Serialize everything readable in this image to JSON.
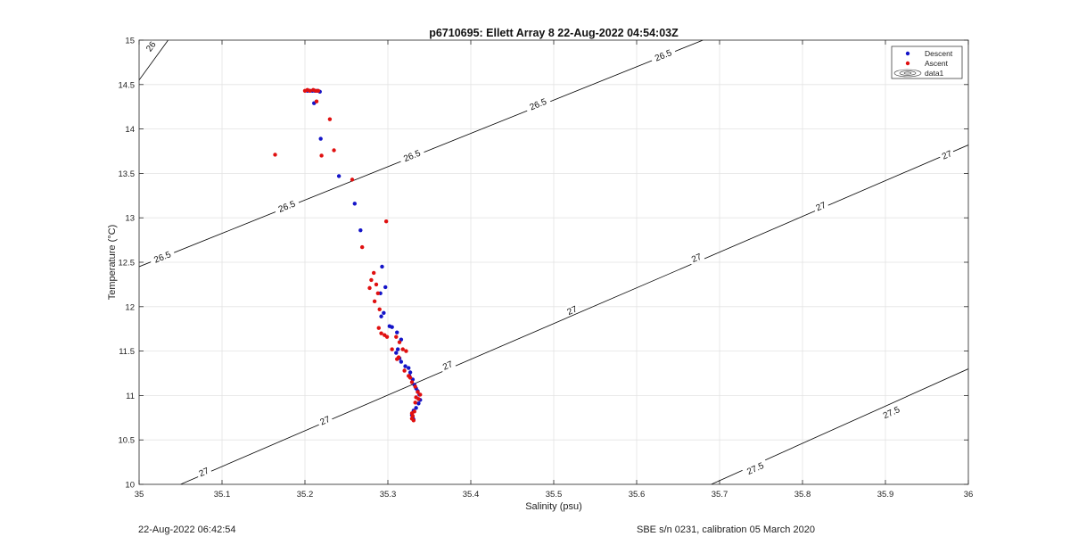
{
  "chart_data": {
    "type": "scatter",
    "title": "p6710695: Ellett Array 8 22-Aug-2022 04:54:03Z",
    "xlabel": "Salinity (psu)",
    "ylabel": "Temperature (°C)",
    "xlim": [
      35,
      36
    ],
    "ylim": [
      10,
      15
    ],
    "xticks": [
      35,
      35.1,
      35.2,
      35.3,
      35.4,
      35.5,
      35.6,
      35.7,
      35.8,
      35.9,
      36
    ],
    "xtick_labels": [
      "35",
      "35.1",
      "35.2",
      "35.3",
      "35.4",
      "35.5",
      "35.6",
      "35.7",
      "35.8",
      "35.9",
      "36"
    ],
    "yticks": [
      10,
      10.5,
      11,
      11.5,
      12,
      12.5,
      13,
      13.5,
      14,
      14.5,
      15
    ],
    "ytick_labels": [
      "10",
      "10.5",
      "11",
      "11.5",
      "12",
      "12.5",
      "13",
      "13.5",
      "14",
      "14.5",
      "15"
    ],
    "grid": true,
    "legend": {
      "position": "top-right",
      "entries": [
        "Descent",
        "Ascent",
        "data1"
      ]
    },
    "colors": {
      "descent": "#1414c8",
      "ascent": "#e01010",
      "contour": "#000000",
      "grid": "#e3e3e3"
    },
    "series": [
      {
        "name": "Descent",
        "color": "#1414c8",
        "points": [
          [
            35.203,
            14.43
          ],
          [
            35.206,
            14.43
          ],
          [
            35.209,
            14.43
          ],
          [
            35.212,
            14.43
          ],
          [
            35.215,
            14.43
          ],
          [
            35.218,
            14.42
          ],
          [
            35.211,
            14.29
          ],
          [
            35.219,
            13.89
          ],
          [
            35.241,
            13.47
          ],
          [
            35.26,
            13.16
          ],
          [
            35.267,
            12.86
          ],
          [
            35.293,
            12.45
          ],
          [
            35.297,
            12.22
          ],
          [
            35.291,
            12.15
          ],
          [
            35.295,
            11.93
          ],
          [
            35.292,
            11.89
          ],
          [
            35.302,
            11.78
          ],
          [
            35.305,
            11.77
          ],
          [
            35.311,
            11.71
          ],
          [
            35.316,
            11.63
          ],
          [
            35.312,
            11.52
          ],
          [
            35.31,
            11.48
          ],
          [
            35.314,
            11.42
          ],
          [
            35.316,
            11.38
          ],
          [
            35.321,
            11.33
          ],
          [
            35.325,
            11.31
          ],
          [
            35.327,
            11.26
          ],
          [
            35.326,
            11.22
          ],
          [
            35.33,
            11.18
          ],
          [
            35.332,
            11.12
          ],
          [
            35.334,
            11.08
          ],
          [
            35.336,
            11.05
          ],
          [
            35.338,
            11.01
          ],
          [
            35.339,
            10.95
          ],
          [
            35.337,
            10.91
          ],
          [
            35.334,
            10.86
          ],
          [
            35.331,
            10.83
          ],
          [
            35.329,
            10.78
          ],
          [
            35.33,
            10.75
          ],
          [
            35.331,
            10.73
          ]
        ]
      },
      {
        "name": "Ascent",
        "color": "#e01010",
        "points": [
          [
            35.2,
            14.43
          ],
          [
            35.203,
            14.44
          ],
          [
            35.206,
            14.43
          ],
          [
            35.21,
            14.44
          ],
          [
            35.213,
            14.43
          ],
          [
            35.216,
            14.43
          ],
          [
            35.214,
            14.31
          ],
          [
            35.23,
            14.11
          ],
          [
            35.235,
            13.76
          ],
          [
            35.22,
            13.7
          ],
          [
            35.164,
            13.71
          ],
          [
            35.257,
            13.43
          ],
          [
            35.298,
            12.96
          ],
          [
            35.269,
            12.67
          ],
          [
            35.283,
            12.38
          ],
          [
            35.28,
            12.3
          ],
          [
            35.286,
            12.25
          ],
          [
            35.278,
            12.21
          ],
          [
            35.288,
            12.15
          ],
          [
            35.284,
            12.06
          ],
          [
            35.29,
            11.97
          ],
          [
            35.289,
            11.76
          ],
          [
            35.296,
            11.68
          ],
          [
            35.292,
            11.7
          ],
          [
            35.299,
            11.66
          ],
          [
            35.31,
            11.66
          ],
          [
            35.314,
            11.6
          ],
          [
            35.318,
            11.52
          ],
          [
            35.305,
            11.52
          ],
          [
            35.322,
            11.5
          ],
          [
            35.311,
            11.41
          ],
          [
            35.313,
            11.43
          ],
          [
            35.32,
            11.28
          ],
          [
            35.325,
            11.22
          ],
          [
            35.329,
            11.15
          ],
          [
            35.327,
            11.2
          ],
          [
            35.333,
            11.1
          ],
          [
            35.336,
            11.04
          ],
          [
            35.339,
            11.01
          ],
          [
            35.334,
            10.98
          ],
          [
            35.337,
            10.96
          ],
          [
            35.333,
            10.92
          ],
          [
            35.332,
            10.82
          ],
          [
            35.329,
            10.8
          ],
          [
            35.33,
            10.77
          ],
          [
            35.329,
            10.74
          ],
          [
            35.331,
            10.72
          ]
        ]
      }
    ],
    "contours": [
      {
        "level": "26",
        "points": [
          [
            35,
            14.55
          ],
          [
            35.035,
            15
          ]
        ],
        "labels": [
          {
            "text": "26",
            "at": [
              35.014,
              14.93
            ]
          }
        ]
      },
      {
        "level": "26.5",
        "points": [
          [
            35,
            12.45
          ],
          [
            35.68,
            15
          ]
        ],
        "labels": [
          {
            "text": "26.5",
            "at": [
              35.028,
              12.56
            ]
          },
          {
            "text": "26.5",
            "at": [
              35.178,
              13.13
            ]
          },
          {
            "text": "26.5",
            "at": [
              35.329,
              13.7
            ]
          },
          {
            "text": "26.5",
            "at": [
              35.481,
              14.28
            ]
          },
          {
            "text": "26.5",
            "at": [
              35.632,
              14.83
            ]
          }
        ]
      },
      {
        "level": "27",
        "points": [
          [
            35.05,
            10
          ],
          [
            36,
            13.82
          ]
        ],
        "labels": [
          {
            "text": "27",
            "at": [
              35.078,
              10.14
            ]
          },
          {
            "text": "27",
            "at": [
              35.224,
              10.72
            ]
          },
          {
            "text": "27",
            "at": [
              35.372,
              11.34
            ]
          },
          {
            "text": "27",
            "at": [
              35.522,
              11.96
            ]
          },
          {
            "text": "27",
            "at": [
              35.672,
              12.55
            ]
          },
          {
            "text": "27",
            "at": [
              35.822,
              13.13
            ]
          },
          {
            "text": "27",
            "at": [
              35.974,
              13.71
            ]
          }
        ]
      },
      {
        "level": "27.5",
        "points": [
          [
            35.69,
            10
          ],
          [
            36,
            11.3
          ]
        ],
        "labels": [
          {
            "text": "27.5",
            "at": [
              35.743,
              10.18
            ]
          },
          {
            "text": "27.5",
            "at": [
              35.907,
              10.81
            ]
          }
        ]
      }
    ]
  },
  "footer": {
    "timestamp": "22-Aug-2022 06:42:54",
    "calibration": "SBE s/n 0231, calibration 05 March 2020"
  }
}
